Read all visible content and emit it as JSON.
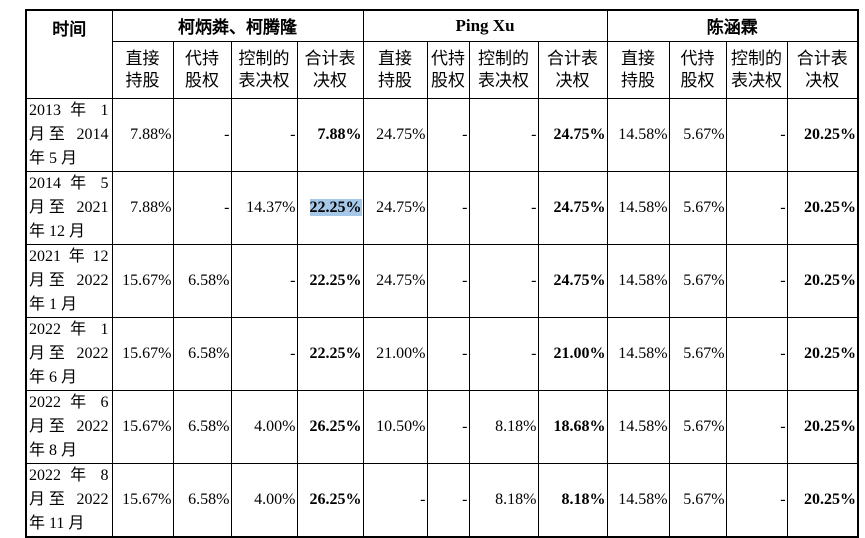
{
  "header": {
    "time": "时间",
    "groups": [
      "柯炳粦、柯腾隆",
      "Ping Xu",
      "陈涵霖"
    ],
    "sub": [
      "直接持股",
      "代持股权",
      "控制的表决权",
      "合计表决权",
      "直接持股",
      "代持股权",
      "控制的表决权",
      "合计表决权",
      "直接持股",
      "代持股权",
      "控制的表决权",
      "合计表决权"
    ]
  },
  "rows": [
    {
      "period": "2013 年 1 月至 2014 年 5 月",
      "cells": [
        "7.88%",
        "-",
        "-",
        "7.88%",
        "24.75%",
        "-",
        "-",
        "24.75%",
        "14.58%",
        "5.67%",
        "-",
        "20.25%"
      ]
    },
    {
      "period": "2014 年 5 月至 2021 年 12 月",
      "cells": [
        "7.88%",
        "-",
        "14.37%",
        "22.25%",
        "24.75%",
        "-",
        "-",
        "24.75%",
        "14.58%",
        "5.67%",
        "-",
        "20.25%"
      ]
    },
    {
      "period": "2021年12月至 2022 年 1 月",
      "cells": [
        "15.67%",
        "6.58%",
        "-",
        "22.25%",
        "24.75%",
        "-",
        "-",
        "24.75%",
        "14.58%",
        "5.67%",
        "-",
        "20.25%"
      ]
    },
    {
      "period": "2022 年 1 月至 2022 年 6 月",
      "cells": [
        "15.67%",
        "6.58%",
        "-",
        "22.25%",
        "21.00%",
        "-",
        "-",
        "21.00%",
        "14.58%",
        "5.67%",
        "-",
        "20.25%"
      ]
    },
    {
      "period": "2022 年 6 月至 2022 年 8 月",
      "cells": [
        "15.67%",
        "6.58%",
        "4.00%",
        "26.25%",
        "10.50%",
        "-",
        "8.18%",
        "18.68%",
        "14.58%",
        "5.67%",
        "-",
        "20.25%"
      ]
    },
    {
      "period": "2022 年 8 月至 2022 年 11 月",
      "cells": [
        "15.67%",
        "6.58%",
        "4.00%",
        "26.25%",
        "-",
        "-",
        "8.18%",
        "8.18%",
        "14.58%",
        "5.67%",
        "-",
        "20.25%"
      ]
    }
  ]
}
